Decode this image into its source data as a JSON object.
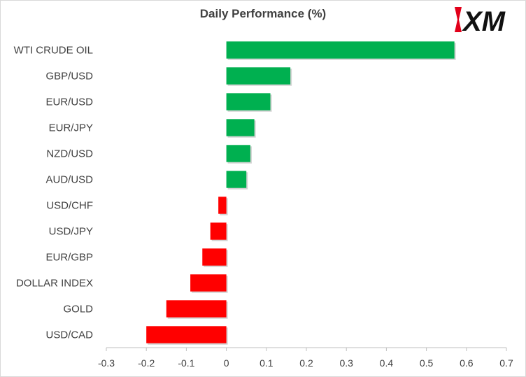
{
  "chart_data": {
    "type": "bar",
    "orientation": "horizontal",
    "title": "Daily Performance  (%)",
    "categories": [
      "WTI CRUDE OIL",
      "GBP/USD",
      "EUR/USD",
      "EUR/JPY",
      "NZD/USD",
      "AUD/USD",
      "USD/CHF",
      "USD/JPY",
      "EUR/GBP",
      "DOLLAR INDEX",
      "GOLD",
      "USD/CAD"
    ],
    "values": [
      0.57,
      0.16,
      0.11,
      0.07,
      0.06,
      0.05,
      -0.02,
      -0.04,
      -0.06,
      -0.09,
      -0.15,
      -0.2
    ],
    "xlim": [
      -0.3,
      0.7
    ],
    "xticks": [
      "-0.3",
      "-0.2",
      "-0.1",
      "0",
      "0.1",
      "0.2",
      "0.3",
      "0.4",
      "0.5",
      "0.6",
      "0.7"
    ],
    "tick_values": [
      -0.3,
      -0.2,
      -0.1,
      0,
      0.1,
      0.2,
      0.3,
      0.4,
      0.5,
      0.6,
      0.7
    ],
    "grid": false,
    "colors": {
      "positive": "#00b050",
      "negative": "#ff0000"
    }
  },
  "logo": {
    "text": "XM",
    "accent": "#e2001a"
  }
}
